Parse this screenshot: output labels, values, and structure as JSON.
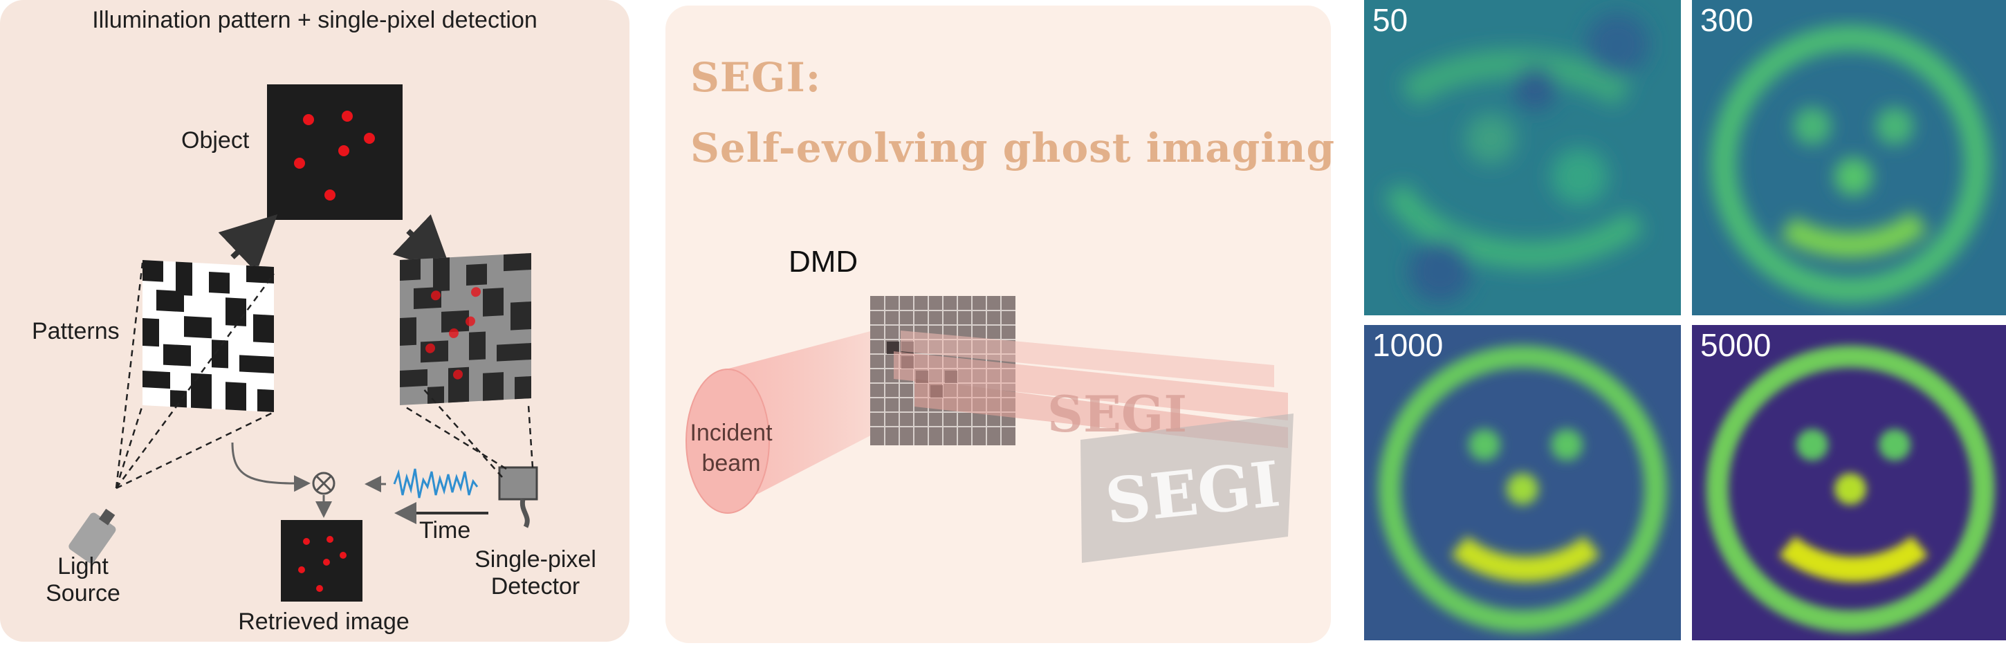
{
  "panel_a": {
    "title": "Illumination pattern + single-pixel detection",
    "object_label": "Object",
    "patterns_label": "Patterns",
    "light_source_label": [
      "Light",
      "Source"
    ],
    "detector_label": [
      "Single-pixel",
      "Detector"
    ],
    "time_label": "Time",
    "retrieved_label": "Retrieved image"
  },
  "panel_b": {
    "title_line1": "SEGI:",
    "title_line2": "Self-evolving ghost imaging",
    "dmd_label": "DMD",
    "beam_label": [
      "Incident",
      "beam"
    ],
    "segi_text": "SEGI"
  },
  "panel_c": {
    "labels": [
      "50",
      "300",
      "1000",
      "5000"
    ]
  },
  "colors": {
    "panel_a_bg": "#f6e6dd",
    "panel_b_bg": "#fcefe7",
    "dot_red": "#e8141b",
    "title_peach": "#e2b08a",
    "signal_blue": "#2f8fd0"
  }
}
